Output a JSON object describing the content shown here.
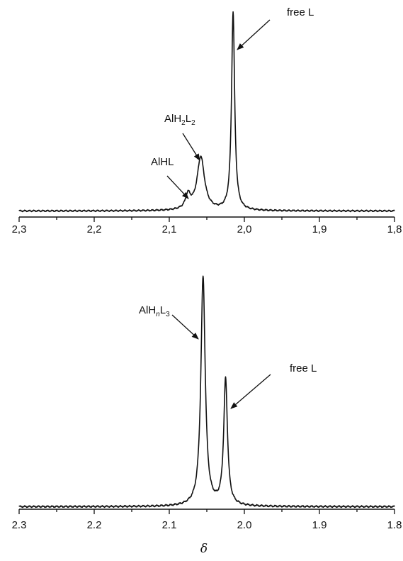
{
  "chart_data": [
    {
      "type": "line",
      "panel": "top",
      "xlabel": "",
      "xlim": [
        2.3,
        1.8
      ],
      "x_reversed": true,
      "x_ticks": [
        2.3,
        2.2,
        2.1,
        2.0,
        1.9,
        1.8
      ],
      "x_tick_labels": [
        "2,3",
        "2,2",
        "2,1",
        "2,0",
        "1,9",
        "1,8"
      ],
      "ylim": [
        0,
        100
      ],
      "y_axis_visible": false,
      "grid": false,
      "baseline": 2.0,
      "peaks": [
        {
          "center": 2.075,
          "height": 7,
          "width": 0.004
        },
        {
          "center": 2.058,
          "height": 27,
          "width": 0.006
        },
        {
          "center": 2.015,
          "height": 100,
          "width": 0.0025
        }
      ],
      "annotations": [
        {
          "text_parts": [
            {
              "t": "AlHL",
              "s": "normal"
            }
          ],
          "x": 2.075
        },
        {
          "text_parts": [
            {
              "t": "AlH",
              "s": "normal"
            },
            {
              "t": "2",
              "s": "sub"
            },
            {
              "t": "L",
              "s": "normal"
            },
            {
              "t": "2",
              "s": "sub"
            }
          ],
          "x": 2.058
        },
        {
          "text_parts": [
            {
              "t": "free L",
              "s": "normal"
            }
          ],
          "x": 2.015
        }
      ]
    },
    {
      "type": "line",
      "panel": "bottom",
      "xlabel": "δ",
      "xlim": [
        2.3,
        1.8
      ],
      "x_reversed": true,
      "x_ticks": [
        2.3,
        2.2,
        2.1,
        2.0,
        1.9,
        1.8
      ],
      "x_tick_labels": [
        "2.3",
        "2.2",
        "2.1",
        "2.0",
        "1.9",
        "1.8"
      ],
      "ylim": [
        0,
        100
      ],
      "y_axis_visible": false,
      "grid": false,
      "baseline": 0.5,
      "peaks": [
        {
          "center": 2.055,
          "height": 100,
          "width": 0.0035
        },
        {
          "center": 2.025,
          "height": 55,
          "width": 0.003
        }
      ],
      "annotations": [
        {
          "text_parts": [
            {
              "t": "AlH",
              "s": "normal"
            },
            {
              "t": "n",
              "s": "sub-italic"
            },
            {
              "t": "L",
              "s": "normal"
            },
            {
              "t": "3",
              "s": "sub"
            }
          ],
          "x": 2.055
        },
        {
          "text_parts": [
            {
              "t": "free L",
              "s": "normal"
            }
          ],
          "x": 2.025
        }
      ]
    }
  ],
  "colors": {
    "line": "#111111",
    "axis": "#111111",
    "background": "#ffffff"
  }
}
